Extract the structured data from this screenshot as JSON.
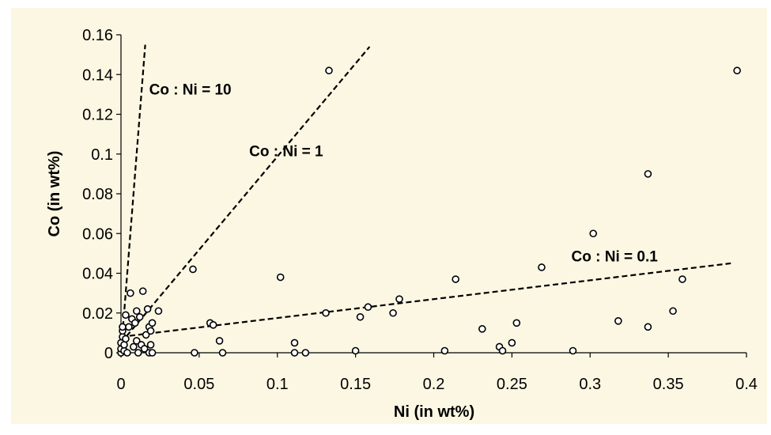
{
  "colors": {
    "background": "#ffffff",
    "plot_area": "#fbf7e3",
    "axis": "#000000",
    "marker_stroke": "#000000",
    "marker_fill": "#ffffff"
  },
  "chart_data": {
    "type": "scatter",
    "title": "",
    "xlabel": "Ni (in wt%)",
    "ylabel": "Co (in wt%)",
    "xlim": [
      0,
      0.4
    ],
    "ylim": [
      0,
      0.16
    ],
    "x_ticks": [
      "0",
      "0.05",
      "0.1",
      "0.15",
      "0.2",
      "0.25",
      "0.3",
      "0.35",
      "0.4"
    ],
    "y_ticks": [
      "0",
      "0.02",
      "0.04",
      "0.06",
      "0.08",
      "0.1",
      "0.12",
      "0.14",
      "0.16"
    ],
    "grid": false,
    "legend": "none",
    "marker": "open-circle",
    "points": [
      {
        "x": 0.0,
        "y": 0.0
      },
      {
        "x": 0.0,
        "y": 0.002
      },
      {
        "x": 0.0,
        "y": 0.005
      },
      {
        "x": 0.001,
        "y": 0.008
      },
      {
        "x": 0.001,
        "y": 0.011
      },
      {
        "x": 0.001,
        "y": 0.013
      },
      {
        "x": 0.002,
        "y": 0.001
      },
      {
        "x": 0.002,
        "y": 0.004
      },
      {
        "x": 0.003,
        "y": 0.007
      },
      {
        "x": 0.003,
        "y": 0.019
      },
      {
        "x": 0.004,
        "y": 0.0
      },
      {
        "x": 0.005,
        "y": 0.013
      },
      {
        "x": 0.006,
        "y": 0.03
      },
      {
        "x": 0.007,
        "y": 0.017
      },
      {
        "x": 0.008,
        "y": 0.003
      },
      {
        "x": 0.009,
        "y": 0.015
      },
      {
        "x": 0.01,
        "y": 0.021
      },
      {
        "x": 0.01,
        "y": 0.006
      },
      {
        "x": 0.011,
        "y": 0.0
      },
      {
        "x": 0.012,
        "y": 0.018
      },
      {
        "x": 0.013,
        "y": 0.004
      },
      {
        "x": 0.014,
        "y": 0.031
      },
      {
        "x": 0.015,
        "y": 0.002
      },
      {
        "x": 0.016,
        "y": 0.009
      },
      {
        "x": 0.017,
        "y": 0.022
      },
      {
        "x": 0.018,
        "y": 0.0
      },
      {
        "x": 0.018,
        "y": 0.013
      },
      {
        "x": 0.019,
        "y": 0.004
      },
      {
        "x": 0.019,
        "y": 0.011
      },
      {
        "x": 0.02,
        "y": 0.0
      },
      {
        "x": 0.02,
        "y": 0.015
      },
      {
        "x": 0.024,
        "y": 0.021
      },
      {
        "x": 0.046,
        "y": 0.042
      },
      {
        "x": 0.047,
        "y": 0.0
      },
      {
        "x": 0.057,
        "y": 0.015
      },
      {
        "x": 0.059,
        "y": 0.014
      },
      {
        "x": 0.063,
        "y": 0.006
      },
      {
        "x": 0.065,
        "y": 0.0
      },
      {
        "x": 0.102,
        "y": 0.038
      },
      {
        "x": 0.111,
        "y": 0.005
      },
      {
        "x": 0.111,
        "y": 0.0
      },
      {
        "x": 0.118,
        "y": 0.0
      },
      {
        "x": 0.131,
        "y": 0.02
      },
      {
        "x": 0.133,
        "y": 0.142
      },
      {
        "x": 0.15,
        "y": 0.001
      },
      {
        "x": 0.153,
        "y": 0.018
      },
      {
        "x": 0.158,
        "y": 0.023
      },
      {
        "x": 0.174,
        "y": 0.02
      },
      {
        "x": 0.178,
        "y": 0.027
      },
      {
        "x": 0.207,
        "y": 0.001
      },
      {
        "x": 0.214,
        "y": 0.037
      },
      {
        "x": 0.231,
        "y": 0.012
      },
      {
        "x": 0.242,
        "y": 0.003
      },
      {
        "x": 0.244,
        "y": 0.001
      },
      {
        "x": 0.25,
        "y": 0.005
      },
      {
        "x": 0.253,
        "y": 0.015
      },
      {
        "x": 0.269,
        "y": 0.043
      },
      {
        "x": 0.289,
        "y": 0.001
      },
      {
        "x": 0.302,
        "y": 0.06
      },
      {
        "x": 0.318,
        "y": 0.016
      },
      {
        "x": 0.337,
        "y": 0.09
      },
      {
        "x": 0.337,
        "y": 0.013
      },
      {
        "x": 0.353,
        "y": 0.021
      },
      {
        "x": 0.359,
        "y": 0.037
      },
      {
        "x": 0.394,
        "y": 0.142
      }
    ],
    "reference_lines": [
      {
        "label": "Co : Ni = 10",
        "x": [
          0,
          0.0155
        ],
        "y": [
          0,
          0.155
        ],
        "style": "dashed"
      },
      {
        "label": "Co : Ni = 1",
        "x": [
          0.0,
          0.159
        ],
        "y": [
          0.005,
          0.154
        ],
        "style": "dashed"
      },
      {
        "label": "Co : Ni = 0.1",
        "x": [
          0.0,
          0.39
        ],
        "y": [
          0.008,
          0.045
        ],
        "style": "dashed"
      }
    ],
    "annotations": [
      {
        "text": "Co : Ni = 10",
        "x": 0.018,
        "y": 0.13
      },
      {
        "text": "Co : Ni = 1",
        "x": 0.082,
        "y": 0.099
      },
      {
        "text": "Co : Ni = 0.1",
        "x": 0.288,
        "y": 0.046
      }
    ]
  }
}
